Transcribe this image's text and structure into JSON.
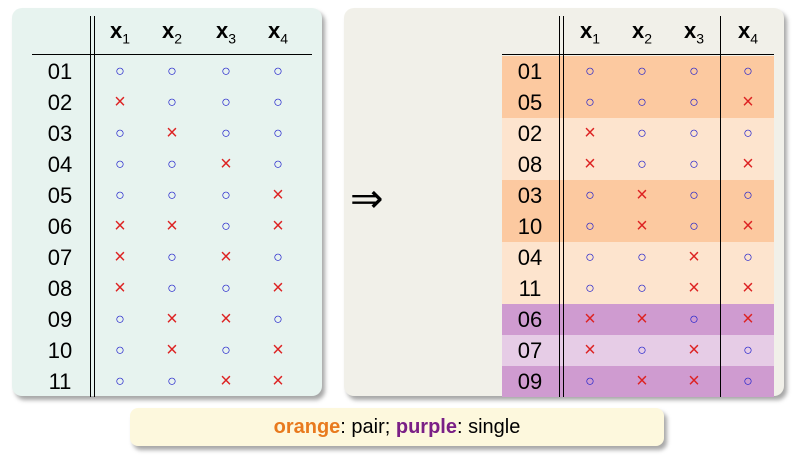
{
  "headers": [
    {
      "base": "x",
      "sub": "1"
    },
    {
      "base": "x",
      "sub": "2"
    },
    {
      "base": "x",
      "sub": "3"
    },
    {
      "base": "x",
      "sub": "4"
    }
  ],
  "symbols": {
    "o": "○",
    "x": "×"
  },
  "colors": {
    "orange_dark": "#fcc9a0",
    "orange_light": "#fde4ce",
    "purple_dark": "#cf9bd0",
    "purple_light": "#e6cce6",
    "circle": "#2222cc",
    "cross": "#dd2222"
  },
  "left_table": {
    "rows": [
      {
        "id": "01",
        "v": [
          "o",
          "o",
          "o",
          "o"
        ]
      },
      {
        "id": "02",
        "v": [
          "x",
          "o",
          "o",
          "o"
        ]
      },
      {
        "id": "03",
        "v": [
          "o",
          "x",
          "o",
          "o"
        ]
      },
      {
        "id": "04",
        "v": [
          "o",
          "o",
          "x",
          "o"
        ]
      },
      {
        "id": "05",
        "v": [
          "o",
          "o",
          "o",
          "x"
        ]
      },
      {
        "id": "06",
        "v": [
          "x",
          "x",
          "o",
          "x"
        ]
      },
      {
        "id": "07",
        "v": [
          "x",
          "o",
          "x",
          "o"
        ]
      },
      {
        "id": "08",
        "v": [
          "x",
          "o",
          "o",
          "x"
        ]
      },
      {
        "id": "09",
        "v": [
          "o",
          "x",
          "x",
          "o"
        ]
      },
      {
        "id": "10",
        "v": [
          "o",
          "x",
          "o",
          "x"
        ]
      },
      {
        "id": "11",
        "v": [
          "o",
          "o",
          "x",
          "x"
        ]
      }
    ]
  },
  "right_table": {
    "rows": [
      {
        "id": "01",
        "v": [
          "o",
          "o",
          "o",
          "o"
        ],
        "group": "orange_dark"
      },
      {
        "id": "05",
        "v": [
          "o",
          "o",
          "o",
          "x"
        ],
        "group": "orange_dark"
      },
      {
        "id": "02",
        "v": [
          "x",
          "o",
          "o",
          "o"
        ],
        "group": "orange_light"
      },
      {
        "id": "08",
        "v": [
          "x",
          "o",
          "o",
          "x"
        ],
        "group": "orange_light"
      },
      {
        "id": "03",
        "v": [
          "o",
          "x",
          "o",
          "o"
        ],
        "group": "orange_dark"
      },
      {
        "id": "10",
        "v": [
          "o",
          "x",
          "o",
          "x"
        ],
        "group": "orange_dark"
      },
      {
        "id": "04",
        "v": [
          "o",
          "o",
          "x",
          "o"
        ],
        "group": "orange_light"
      },
      {
        "id": "11",
        "v": [
          "o",
          "o",
          "x",
          "x"
        ],
        "group": "orange_light"
      },
      {
        "id": "06",
        "v": [
          "x",
          "x",
          "o",
          "x"
        ],
        "group": "purple_dark"
      },
      {
        "id": "07",
        "v": [
          "x",
          "o",
          "x",
          "o"
        ],
        "group": "purple_light"
      },
      {
        "id": "09",
        "v": [
          "o",
          "x",
          "x",
          "o"
        ],
        "group": "purple_dark"
      }
    ]
  },
  "arrow": "⇒",
  "caption": {
    "kw1": "orange",
    "text1": ": pair; ",
    "kw2": "purple",
    "text2": ": single"
  }
}
